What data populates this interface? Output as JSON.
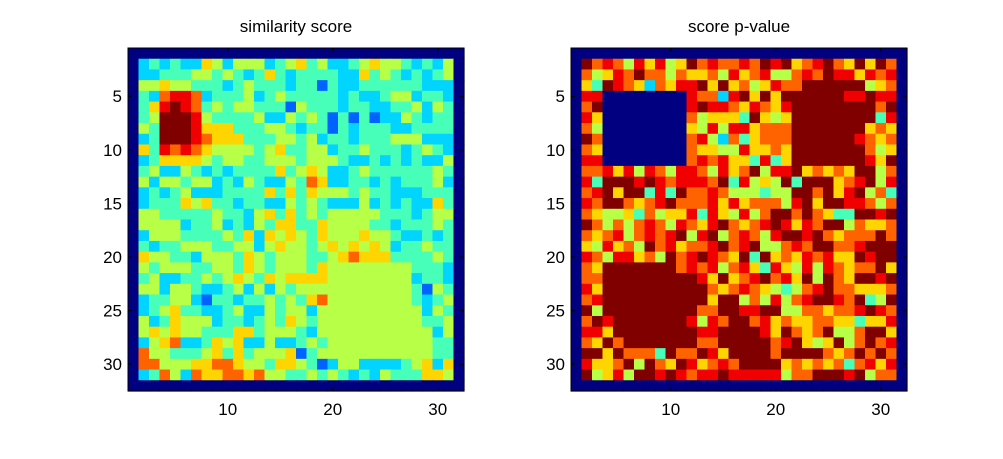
{
  "chart_data": [
    {
      "type": "heatmap",
      "title": "similarity score",
      "xlabel": "",
      "ylabel": "",
      "x_range": [
        0.5,
        32.5
      ],
      "y_range": [
        0.5,
        32.5
      ],
      "y_reversed": true,
      "xticks": [
        10,
        20,
        30
      ],
      "yticks": [
        5,
        10,
        15,
        20,
        25,
        30
      ],
      "colormap": "jet",
      "value_range": [
        0,
        1
      ],
      "grid": false,
      "legend": "none",
      "rows": [
        "00000000000000000000000000000000",
        "03434336535553456453345655434350",
        "03344455454346434444336454343450",
        "05565544434544434424334444443330",
        "04378873444534544444343345534430",
        "04689874545544425444344334453540",
        "04599985444453354542424233543440",
        "05499986664445543442434443344440",
        "03499987666444554534434445553330",
        "06487876555545644553445444345430",
        "03466665455445554555433434343350",
        "04533543434444645653345444444540",
        "05355455343543354763344343444530",
        "03434533344446464655545443334440",
        "03444656443443354543335343433640",
        "05544444544356464545555544434550",
        "05555344534354664465555443444540",
        "03555444454636565465556554334340",
        "04344555445535655456565653445440",
        "06554435554654555445676664444540",
        "05455544554654555465555555544430",
        "04533445456546566665555555534430",
        "05535543345353545555555555542540",
        "03445532443445454675555555543450",
        "03456443345335455355555555553540",
        "05346555344345465455555555554450",
        "05656554446645554355555555555350",
        "03567334656335334545555555555440",
        "07554445646455562455555555555440",
        "07755566776554665423553333456360",
        "03475376677675544545434354446650",
        "00000000000000000000000000000000"
      ]
    },
    {
      "type": "heatmap",
      "title": "score p-value",
      "xlabel": "",
      "ylabel": "",
      "x_range": [
        0.5,
        32.5
      ],
      "y_range": [
        0.5,
        32.5
      ],
      "y_reversed": true,
      "xticks": [
        10,
        20,
        30
      ],
      "yticks": [
        5,
        10,
        15,
        20,
        25,
        30
      ],
      "colormap": "jet",
      "value_range": [
        0,
        1
      ],
      "grid": false,
      "legend": "none",
      "rows": [
        "00000000000000000000000000000000",
        "09787586856978778798967897696970",
        "07568797757667586785578798868780",
        "06498763768896967568779999995670",
        "08800000000877389696999999889880",
        "07900000000898876876899999999790",
        "08600000000756664965699999999480",
        "07500000000658588677799999996760",
        "09700000000785374677799999987670",
        "07600000000766558667699999997560",
        "08800000000787866484699999998690",
        "07786858758875867958896767699570",
        "08499989878887948565949996789580",
        "07896994849778755545599796895740",
        "08799767897778686777589699887570",
        "07655647566848658579979764499890",
        "09757578758768976789868799576670",
        "07678578789589578758998976777970",
        "06586759786778978955787997789990",
        "08758867597898769496768786698990",
        "07699999997878578648658587677960",
        "07799999999986967897869597699890",
        "08699999999997678765457897766670",
        "07899999999996995758578998794590",
        "09599999999977998899557767789870",
        "07989999999858799786766776646680",
        "08869999999988999986976795579960",
        "07697999999977999997896569579780",
        "09969777497798699997999976797970",
        "08667959769867879999676767478680",
        "09568599898788988888577999895770",
        "00000000000000000000000000000000"
      ]
    }
  ]
}
